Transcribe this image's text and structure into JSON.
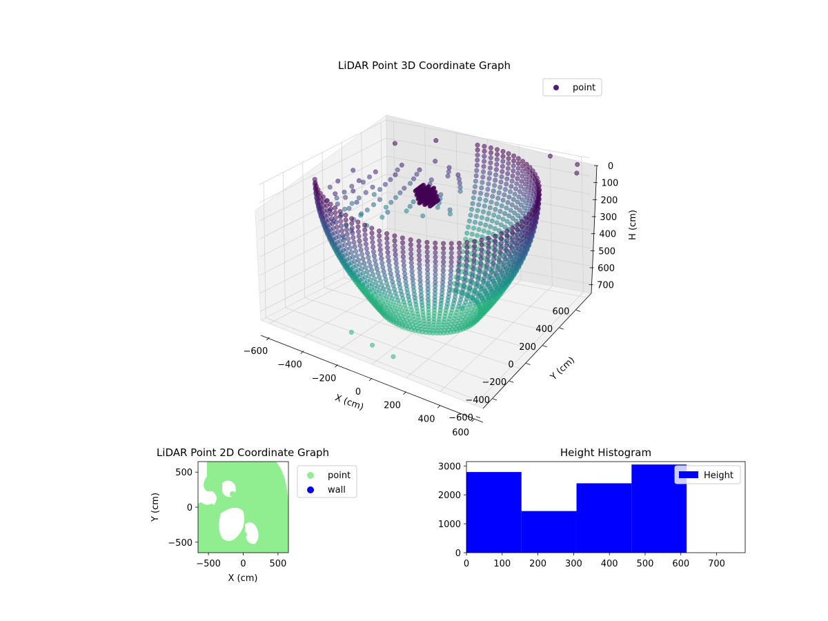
{
  "chart_data": [
    {
      "type": "scatter",
      "projection": "3d",
      "title": "LiDAR Point 3D Coordinate Graph",
      "xlabel": "X (cm)",
      "ylabel": "Y (cm)",
      "zlabel": "H (cm)",
      "xticks": [
        "−600",
        "−400",
        "−200",
        "0",
        "200",
        "400",
        "600"
      ],
      "yticks": [
        "−600",
        "−400",
        "−200",
        "0",
        "200",
        "400",
        "600"
      ],
      "zticks": [
        "0",
        "100",
        "200",
        "300",
        "400",
        "500",
        "600",
        "700"
      ],
      "xlim": [
        -650,
        650
      ],
      "ylim": [
        -650,
        650
      ],
      "zlim": [
        0,
        750
      ],
      "z_axis_inverted": true,
      "grid": true,
      "colormap": "viridis",
      "legend": {
        "placement": "upper right",
        "entries": [
          "point"
        ]
      },
      "series": [
        {
          "name": "point",
          "color": "#482173",
          "shape_description": "dome of points arranged in rings around the origin, colored by height",
          "points_sample": [
            {
              "x": -500,
              "y": 300,
              "h": 150
            },
            {
              "x": -300,
              "y": -100,
              "h": 400
            },
            {
              "x": 0,
              "y": 0,
              "h": 50
            },
            {
              "x": 300,
              "y": -450,
              "h": 700
            },
            {
              "x": 500,
              "y": 450,
              "h": 300
            }
          ]
        }
      ]
    },
    {
      "type": "scatter",
      "title": "LiDAR Point 2D Coordinate Graph",
      "xlabel": "X (cm)",
      "ylabel": "Y (cm)",
      "xticks": [
        "−500",
        "0",
        "500"
      ],
      "yticks": [
        "−500",
        "0",
        "500"
      ],
      "xlim": [
        -650,
        650
      ],
      "ylim": [
        -650,
        650
      ],
      "legend": {
        "placement": "outside right",
        "entries": [
          "point",
          "wall"
        ]
      },
      "series": [
        {
          "name": "point",
          "color": "#90ee90"
        },
        {
          "name": "wall",
          "color": "#0000ee"
        }
      ]
    },
    {
      "type": "bar",
      "title": "Height Histogram",
      "xticks": [
        "0",
        "100",
        "200",
        "300",
        "400",
        "500",
        "600",
        "700"
      ],
      "yticks": [
        "0",
        "1000",
        "2000",
        "3000"
      ],
      "xlim": [
        0,
        780
      ],
      "ylim": [
        0,
        3150
      ],
      "legend": {
        "placement": "upper right",
        "entries": [
          "Height"
        ]
      },
      "series": [
        {
          "name": "Height",
          "color": "#0000ff",
          "bins": [
            {
              "from": 0,
              "to": 154,
              "count": 2790
            },
            {
              "from": 154,
              "to": 308,
              "count": 1440
            },
            {
              "from": 308,
              "to": 462,
              "count": 2400
            },
            {
              "from": 462,
              "to": 616,
              "count": 3050
            }
          ]
        }
      ]
    }
  ]
}
